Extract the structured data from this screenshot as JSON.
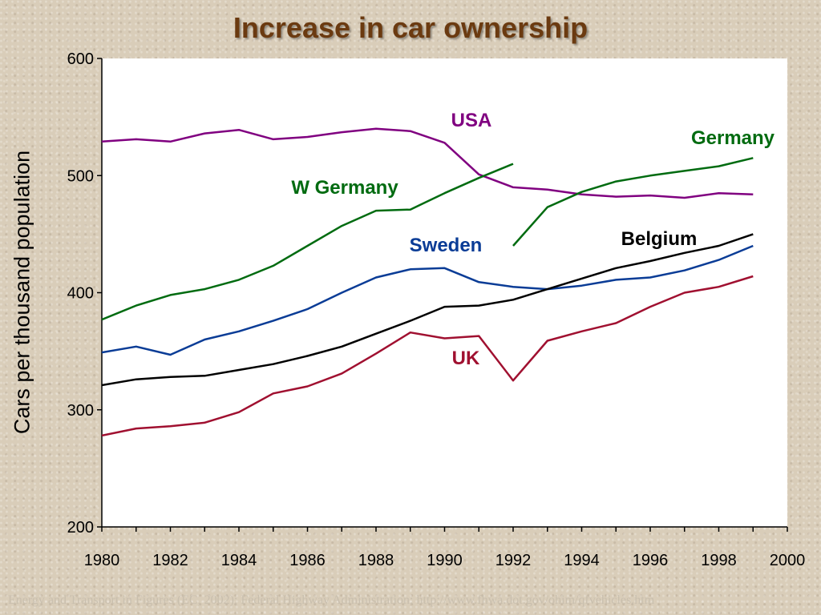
{
  "slide": {
    "title": "Increase in car ownership",
    "source": "Energy and Transport in Figures (EC, 2002); Federal Highway Administration; http://www.fhwa.dot.gov/ohim/qfvehicles.htm"
  },
  "chart_data": {
    "type": "line",
    "title": "Increase in car ownership",
    "xlabel": "",
    "ylabel": "Cars per thousand population",
    "xlim": [
      1980,
      2000
    ],
    "ylim": [
      200,
      600
    ],
    "x_ticks": [
      "1980",
      "1982",
      "1984",
      "1986",
      "1988",
      "1990",
      "1992",
      "1994",
      "1996",
      "1998",
      "2000"
    ],
    "y_ticks": [
      "200",
      "300",
      "400",
      "500",
      "600"
    ],
    "grid": false,
    "series": [
      {
        "name": "USA",
        "color": "#800080",
        "x": [
          1980,
          1981,
          1982,
          1983,
          1984,
          1985,
          1986,
          1987,
          1988,
          1989,
          1990,
          1991,
          1992,
          1993,
          1994,
          1995,
          1996,
          1997,
          1998,
          1999
        ],
        "y": [
          529,
          531,
          529,
          536,
          539,
          531,
          533,
          537,
          540,
          538,
          528,
          501,
          490,
          488,
          484,
          482,
          483,
          481,
          485,
          484
        ]
      },
      {
        "name": "W Germany",
        "color": "#006b10",
        "x": [
          1980,
          1981,
          1982,
          1983,
          1984,
          1985,
          1986,
          1987,
          1988,
          1989,
          1990,
          1991,
          1992
        ],
        "y": [
          377,
          389,
          398,
          403,
          411,
          423,
          440,
          457,
          470,
          471,
          485,
          498,
          510
        ]
      },
      {
        "name": "Germany",
        "color": "#006b10",
        "x": [
          1992,
          1993,
          1994,
          1995,
          1996,
          1997,
          1998,
          1999
        ],
        "y": [
          440,
          473,
          486,
          495,
          500,
          504,
          508,
          515
        ]
      },
      {
        "name": "Sweden",
        "color": "#0a3c96",
        "x": [
          1980,
          1981,
          1982,
          1983,
          1984,
          1985,
          1986,
          1987,
          1988,
          1989,
          1990,
          1991,
          1992,
          1993,
          1994,
          1995,
          1996,
          1997,
          1998,
          1999
        ],
        "y": [
          349,
          354,
          347,
          360,
          367,
          376,
          386,
          400,
          413,
          420,
          421,
          409,
          405,
          403,
          406,
          411,
          413,
          419,
          428,
          440
        ]
      },
      {
        "name": "Belgium",
        "color": "#000000",
        "x": [
          1980,
          1981,
          1982,
          1983,
          1984,
          1985,
          1986,
          1987,
          1988,
          1989,
          1990,
          1991,
          1992,
          1993,
          1994,
          1995,
          1996,
          1997,
          1998,
          1999
        ],
        "y": [
          321,
          326,
          328,
          329,
          334,
          339,
          346,
          354,
          365,
          376,
          388,
          389,
          394,
          403,
          412,
          421,
          427,
          434,
          440,
          450
        ]
      },
      {
        "name": "UK",
        "color": "#a01030",
        "x": [
          1980,
          1981,
          1982,
          1983,
          1984,
          1985,
          1986,
          1987,
          1988,
          1989,
          1990,
          1991,
          1992,
          1993,
          1994,
          1995,
          1996,
          1997,
          1998,
          1999
        ],
        "y": [
          278,
          284,
          286,
          289,
          298,
          314,
          320,
          331,
          348,
          366,
          361,
          363,
          325,
          359,
          367,
          374,
          388,
          400,
          405,
          414
        ]
      }
    ],
    "series_labels": [
      {
        "text": "USA",
        "color": "#800080"
      },
      {
        "text": "Germany",
        "color": "#006b10"
      },
      {
        "text": "W Germany",
        "color": "#006b10"
      },
      {
        "text": "Sweden",
        "color": "#0a3c96"
      },
      {
        "text": "Belgium",
        "color": "#000000"
      },
      {
        "text": "UK",
        "color": "#a01030"
      }
    ]
  }
}
